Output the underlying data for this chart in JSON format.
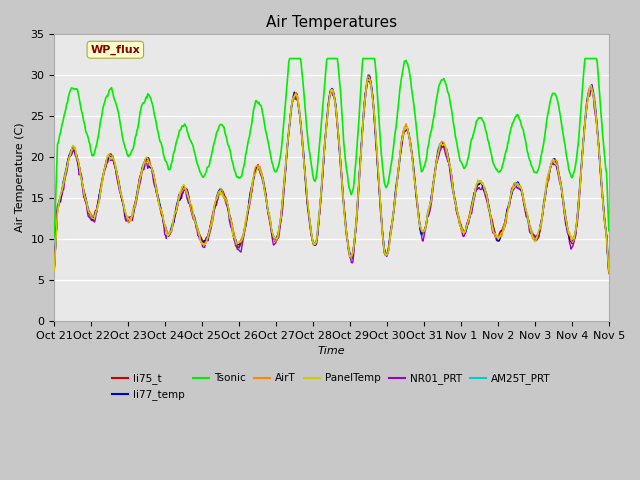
{
  "title": "Air Temperatures",
  "xlabel": "Time",
  "ylabel": "Air Temperature (C)",
  "ylim": [
    0,
    35
  ],
  "yticks": [
    0,
    5,
    10,
    15,
    20,
    25,
    30,
    35
  ],
  "fig_bg": "#c8c8c8",
  "plot_bg": "#e8e8e8",
  "annotation_text": "WP_flux",
  "annotation_color": "#8b0000",
  "annotation_bg": "#ffffcc",
  "annotation_edge": "#aaaa44",
  "series": [
    {
      "name": "li75_t",
      "color": "#cc0000",
      "lw": 1.0,
      "zorder": 6
    },
    {
      "name": "li77_temp",
      "color": "#0000cc",
      "lw": 1.0,
      "zorder": 6
    },
    {
      "name": "Tsonic",
      "color": "#00ee00",
      "lw": 1.2,
      "zorder": 4
    },
    {
      "name": "AirT",
      "color": "#ff8800",
      "lw": 1.0,
      "zorder": 6
    },
    {
      "name": "PanelTemp",
      "color": "#cccc00",
      "lw": 1.0,
      "zorder": 6
    },
    {
      "name": "NR01_PRT",
      "color": "#9900cc",
      "lw": 1.0,
      "zorder": 5
    },
    {
      "name": "AM25T_PRT",
      "color": "#00cccc",
      "lw": 1.4,
      "zorder": 3
    }
  ],
  "x_tick_labels": [
    "Oct 21",
    "Oct 22",
    "Oct 23",
    "Oct 24",
    "Oct 25",
    "Oct 26",
    "Oct 27",
    "Oct 28",
    "Oct 29",
    "Oct 30",
    "Oct 31",
    "Nov 1",
    "Nov 2",
    "Nov 3",
    "Nov 4",
    "Nov 5"
  ],
  "legend_ncol": 6,
  "legend_row2": [
    "AM25T_PRT"
  ],
  "seed": 12345
}
